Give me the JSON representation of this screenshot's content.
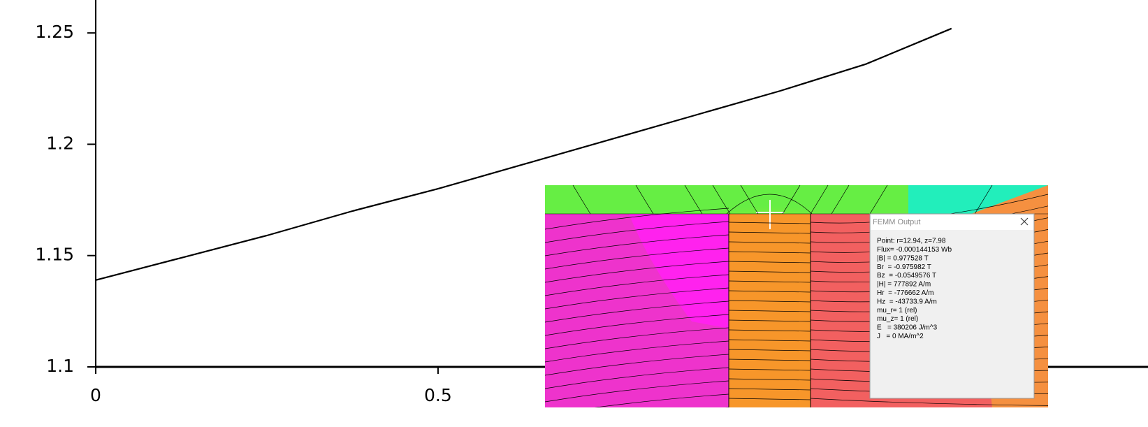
{
  "chart_data": {
    "type": "line",
    "x": [
      0,
      0.125,
      0.25,
      0.375,
      0.5,
      0.625,
      0.75,
      0.875,
      1.0,
      1.125,
      1.25
    ],
    "values": [
      1.139,
      1.149,
      1.159,
      1.17,
      1.18,
      1.191,
      1.202,
      1.213,
      1.224,
      1.236,
      1.252
    ],
    "color": "#000000",
    "xlim": [
      0,
      1.537
    ],
    "xticks": [
      0,
      0.5
    ],
    "ylim": [
      1.1,
      1.2648
    ],
    "yticks": [
      1.1,
      1.15,
      1.2,
      1.25
    ],
    "grid": false
  },
  "femm_window": {
    "title": "FEMM Output",
    "lines": [
      "Point: r=12.94, z=7.98",
      "Flux= -0.000144153 Wb",
      "|B| = 0.977528 T",
      "Br  = -0.975982 T",
      "Bz  = -0.0549576 T",
      "|H| = 777892 A/m",
      "Hr  = -776662 A/m",
      "Hz  = -43733.9 A/m",
      "mu_r= 1 (rel)",
      "mu_z= 1 (rel)",
      "E   = 380206 J/m^3",
      "J   = 0 MA/m^2"
    ]
  }
}
